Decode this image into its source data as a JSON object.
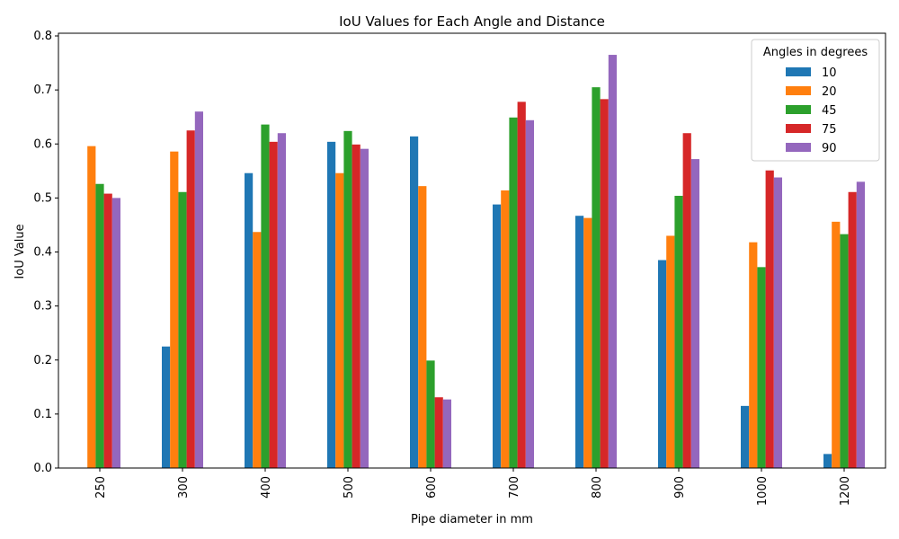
{
  "chart_data": {
    "type": "bar",
    "title": "IoU Values for Each Angle and Distance",
    "xlabel": "Pipe diameter in mm",
    "ylabel": "IoU Value",
    "ylim": [
      0,
      0.805
    ],
    "yticks": [
      "0.0",
      "0.1",
      "0.2",
      "0.3",
      "0.4",
      "0.5",
      "0.6",
      "0.7",
      "0.8"
    ],
    "categories": [
      "250",
      "300",
      "400",
      "500",
      "600",
      "700",
      "800",
      "900",
      "1000",
      "1200"
    ],
    "legend": {
      "title": "Angles in degrees",
      "placement": "top-right"
    },
    "grid": false,
    "series": [
      {
        "name": "10",
        "color": "#1f77b4",
        "values": [
          0.0,
          0.225,
          0.546,
          0.604,
          0.614,
          0.488,
          0.467,
          0.385,
          0.115,
          0.026
        ]
      },
      {
        "name": "20",
        "color": "#ff7f0e",
        "values": [
          0.596,
          0.586,
          0.437,
          0.546,
          0.522,
          0.514,
          0.463,
          0.43,
          0.418,
          0.456
        ]
      },
      {
        "name": "45",
        "color": "#2ca02c",
        "values": [
          0.526,
          0.511,
          0.636,
          0.624,
          0.199,
          0.649,
          0.705,
          0.504,
          0.372,
          0.433
        ]
      },
      {
        "name": "75",
        "color": "#d62728",
        "values": [
          0.508,
          0.625,
          0.604,
          0.599,
          0.131,
          0.678,
          0.683,
          0.62,
          0.551,
          0.511
        ]
      },
      {
        "name": "90",
        "color": "#9467bd",
        "values": [
          0.5,
          0.66,
          0.62,
          0.591,
          0.127,
          0.644,
          0.765,
          0.572,
          0.538,
          0.53
        ]
      }
    ]
  }
}
